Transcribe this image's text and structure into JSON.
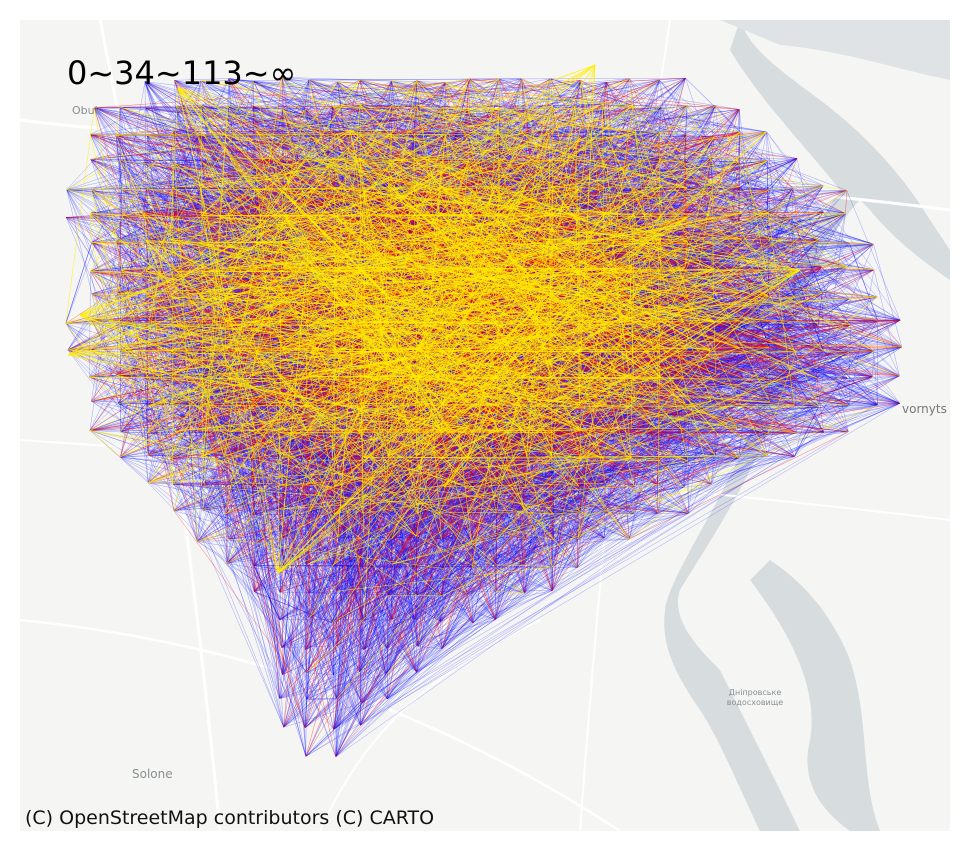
{
  "legend": {
    "text": "0~34~113~∞"
  },
  "attribution": "(C) OpenStreetMap contributors (C) CARTO",
  "places": [
    {
      "name": "Obukhiv",
      "display": "Obuk"
    },
    {
      "name": "Solone",
      "display": "Solone"
    },
    {
      "name": "Dniprovske vodoskhovyshche",
      "display": "Дніпровське водосховище"
    },
    {
      "name": "Bezvornyts",
      "display": "vornyts"
    }
  ],
  "map": {
    "basemap": "CARTO light",
    "background_color": "#f5f6f4",
    "water_color": "#d7dcdf",
    "road_color": "#ffffff"
  },
  "flow_classes": [
    {
      "range": "0–34",
      "color": "#0000ff"
    },
    {
      "range": "34–113",
      "color": "#ff0000"
    },
    {
      "range": "113–∞",
      "color": "#ffee00"
    }
  ]
}
